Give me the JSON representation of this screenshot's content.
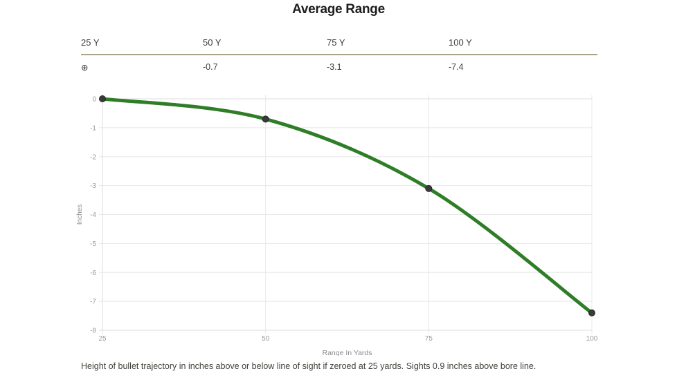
{
  "page": {
    "title": "Average Range",
    "caption": "Height of bullet trajectory in inches above or below line of sight if zeroed at 25 yards. Sights 0.9 inches above bore line."
  },
  "table": {
    "headers": [
      "25 Y",
      "50 Y",
      "75 Y",
      "100 Y"
    ],
    "values": [
      "⊕",
      "-0.7",
      "-3.1",
      "-7.4"
    ],
    "zero_symbol_name": "zero-target-symbol"
  },
  "chart_data": {
    "type": "line",
    "x": [
      25,
      50,
      75,
      100
    ],
    "series": [
      {
        "name": "Average Range",
        "values": [
          0,
          -0.7,
          -3.1,
          -7.4
        ]
      }
    ],
    "title": "Average Range",
    "xlabel": "Range In Yards",
    "ylabel": "Inches",
    "xlim": [
      25,
      100
    ],
    "ylim": [
      -8,
      0
    ],
    "xticks": [
      25,
      50,
      75,
      100
    ],
    "yticks": [
      0,
      -1,
      -2,
      -3,
      -4,
      -5,
      -6,
      -7,
      -8
    ],
    "grid": true,
    "legend": false,
    "line_color": "#2e7d27",
    "marker_color": "#3a3a3a",
    "marker_stroke": "#262626",
    "grid_color": "#e8e8e8",
    "axis_color": "#dcdcdc",
    "tick_label_color": "#999999",
    "axis_label_color": "#8a8a8a"
  }
}
